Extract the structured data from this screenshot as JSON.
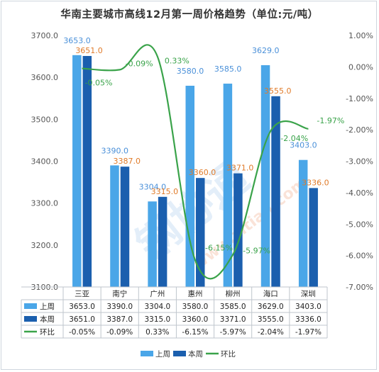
{
  "chart_data": {
    "type": "bar",
    "title": "华南主要城市高线12月第一周价格趋势（单位:元/吨）",
    "categories": [
      "三亚",
      "南宁",
      "广州",
      "惠州",
      "柳州",
      "海口",
      "深圳"
    ],
    "series": [
      {
        "name": "上周",
        "kind": "bar",
        "axis": "left",
        "color": "#4aa6e8",
        "values": [
          3653.0,
          3390.0,
          3304.0,
          3580.0,
          3585.0,
          3629.0,
          3403.0
        ],
        "labels": [
          "3653.0",
          "3390.0",
          "3304.0",
          "3580.0",
          "3585.0",
          "3629.0",
          "3403.0"
        ]
      },
      {
        "name": "本周",
        "kind": "bar",
        "axis": "left",
        "color": "#1b5fae",
        "values": [
          3651.0,
          3387.0,
          3315.0,
          3360.0,
          3371.0,
          3555.0,
          3336.0
        ],
        "labels": [
          "3651.0",
          "3387.0",
          "3315.0",
          "3360.0",
          "3371.0",
          "3555.0",
          "3336.0"
        ]
      },
      {
        "name": "环比",
        "kind": "line",
        "axis": "right",
        "color": "#3aa34a",
        "values": [
          -0.05,
          -0.09,
          0.33,
          -6.15,
          -5.97,
          -2.04,
          -1.97
        ],
        "labels": [
          "-0.05%",
          "-0.09%",
          "0.33%",
          "-6.15%",
          "-5.97%",
          "-2.04%",
          "-1.97%"
        ]
      }
    ],
    "y_left": {
      "min": 3100,
      "max": 3700,
      "ticks": [
        "3700.0",
        "3600.0",
        "3500.0",
        "3400.0",
        "3300.0",
        "3200.0",
        "3100.0"
      ]
    },
    "y_right": {
      "min": -7,
      "max": 1,
      "ticks": [
        "1.00%",
        "0.00%",
        "-1.00%",
        "-2.00%",
        "-3.00%",
        "-4.00%",
        "-5.00%",
        "-6.00%",
        "-7.00%"
      ]
    },
    "grid": false,
    "legend": "bottom",
    "data_table": true,
    "label_colors": {
      "prev": "#4a90d9",
      "curr": "#e07b2a",
      "line": "#3aa34a"
    }
  },
  "watermark": {
    "text": "钢协通",
    "url": "www.zitian.com"
  }
}
